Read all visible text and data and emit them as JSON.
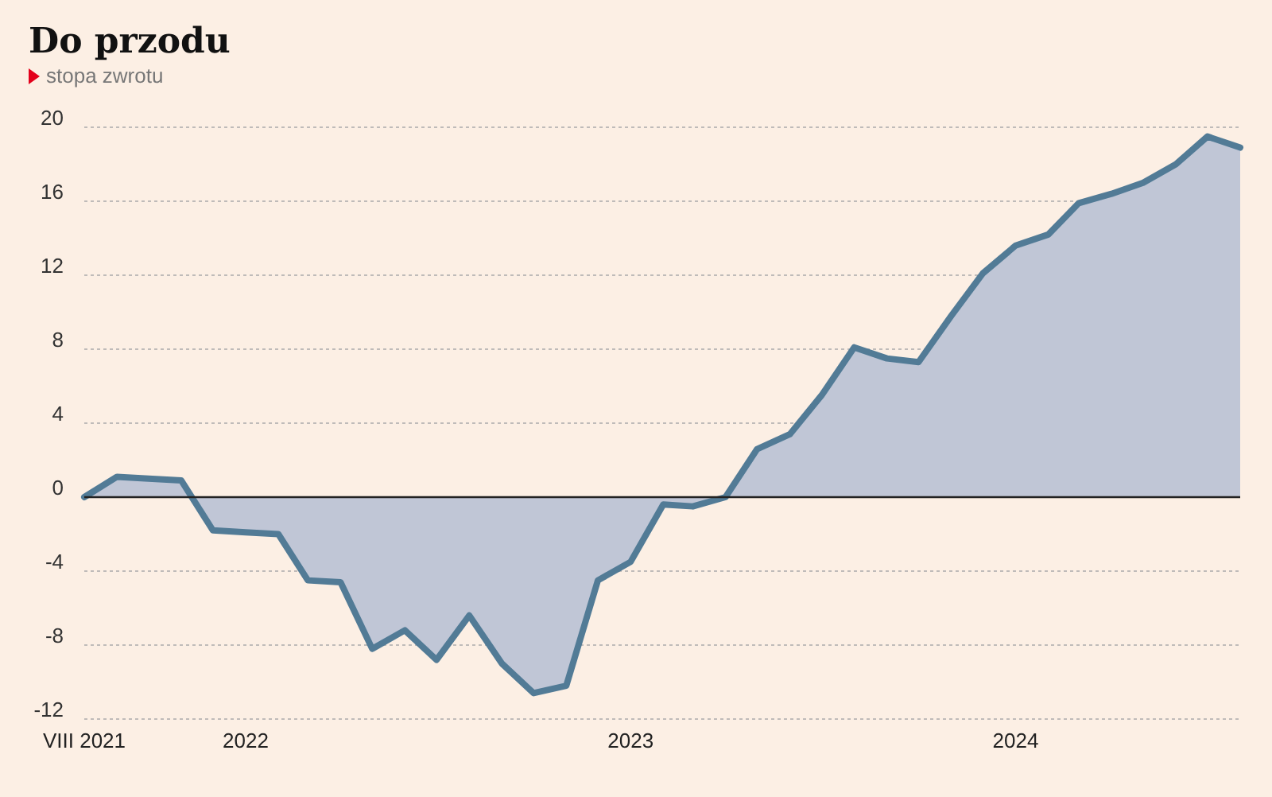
{
  "chart_data": {
    "type": "area",
    "title": "Do przodu",
    "subtitle": "stopa zwrotu",
    "x": [
      "2021-08",
      "2021-09",
      "2021-10",
      "2021-11",
      "2021-12",
      "2022-01",
      "2022-02",
      "2022-03",
      "2022-04",
      "2022-05",
      "2022-06",
      "2022-07",
      "2022-08",
      "2022-09",
      "2022-10",
      "2022-11",
      "2022-12",
      "2023-01",
      "2023-02",
      "2023-03",
      "2023-04",
      "2023-05",
      "2023-06",
      "2023-07",
      "2023-08",
      "2023-09",
      "2023-10",
      "2023-11",
      "2023-12",
      "2024-01",
      "2024-02",
      "2024-03",
      "2024-04",
      "2024-05",
      "2024-06",
      "2024-07",
      "2024-08"
    ],
    "series": [
      {
        "color": "#527b96",
        "values": [
          0,
          1.1,
          1.0,
          0.9,
          -1.8,
          -1.9,
          -2.0,
          -4.5,
          -4.6,
          -8.2,
          -7.2,
          -8.8,
          -6.4,
          -9.0,
          -10.6,
          -10.2,
          -4.5,
          -3.5,
          -0.4,
          -0.5,
          0,
          2.6,
          3.4,
          5.5,
          8.1,
          7.5,
          7.3,
          9.8,
          12.1,
          13.6,
          14.2,
          15.9,
          16.4,
          17.0,
          18.0,
          19.5,
          18.9
        ]
      }
    ],
    "xlim": [
      "2021-08",
      "2024-08"
    ],
    "xticks": [
      {
        "value": "2021-08",
        "label": "VIII 2021"
      },
      {
        "value": "2022-01",
        "label": "2022"
      },
      {
        "value": "2023-01",
        "label": "2023"
      },
      {
        "value": "2024-01",
        "label": "2024"
      }
    ],
    "ylim": [
      -12,
      20
    ],
    "yticks": [
      -12,
      -8,
      -4,
      0,
      4,
      8,
      12,
      16,
      20
    ],
    "grid": "y"
  }
}
